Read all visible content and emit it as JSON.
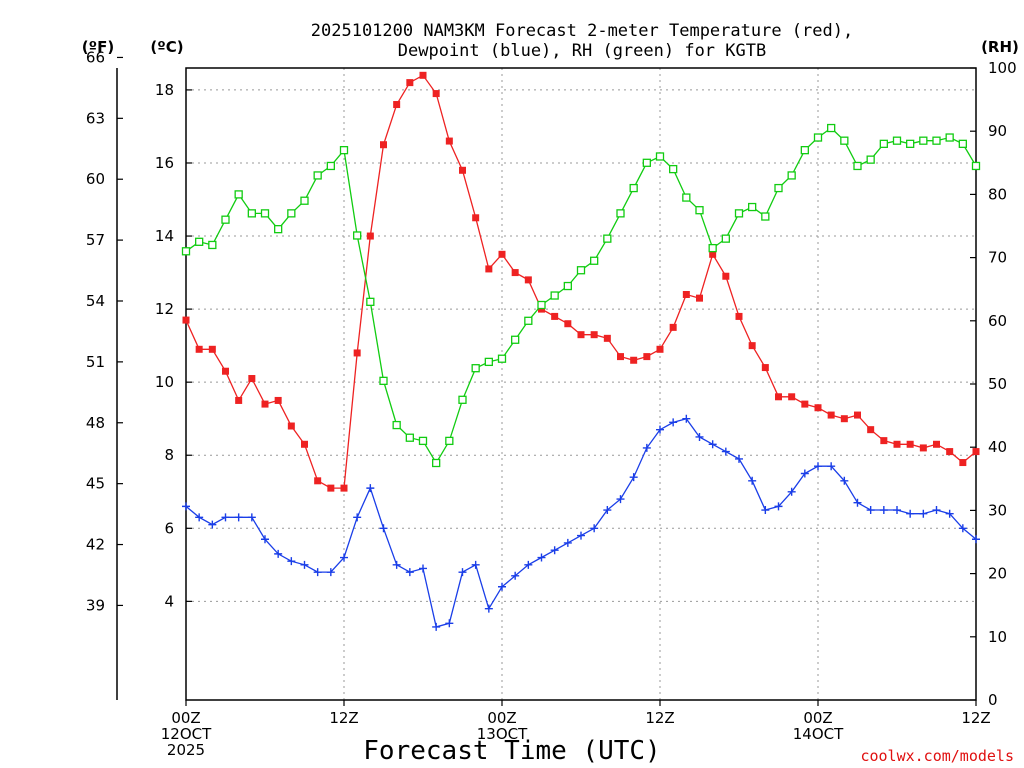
{
  "chart_data": {
    "type": "line",
    "title": "2025101200 NAM3KM Forecast 2-meter Temperature (red),",
    "title_line2": "Dewpoint (blue), RH (green) for KGTB",
    "xlabel": "Forecast Time (UTC)",
    "credit": "coolwx.com/models",
    "units": {
      "fahrenheit": "(ºF)",
      "celsius": "(ºC)",
      "rh": "(RH)"
    },
    "xlim": [
      0,
      60
    ],
    "ylim_c": [
      1.3,
      18.6
    ],
    "ylim_rh": [
      0,
      100
    ],
    "x_ticks": [
      {
        "x": 0,
        "lines": [
          "00Z",
          "12OCT",
          "2025"
        ]
      },
      {
        "x": 12,
        "lines": [
          "12Z"
        ]
      },
      {
        "x": 24,
        "lines": [
          "00Z",
          "13OCT"
        ]
      },
      {
        "x": 36,
        "lines": [
          "12Z"
        ]
      },
      {
        "x": 48,
        "lines": [
          "00Z",
          "14OCT"
        ]
      },
      {
        "x": 60,
        "lines": [
          "12Z"
        ]
      }
    ],
    "y_ticks_c": [
      "4",
      "6",
      "8",
      "10",
      "12",
      "14",
      "16",
      "18"
    ],
    "y_ticks_f": [
      "39",
      "42",
      "45",
      "48",
      "51",
      "54",
      "57",
      "60",
      "63",
      "66"
    ],
    "y_ticks_rh": [
      "0",
      "10",
      "20",
      "30",
      "40",
      "50",
      "60",
      "70",
      "80",
      "90",
      "100"
    ],
    "colors": {
      "temperature": "#ee2222",
      "dewpoint": "#1a3ee8",
      "rh": "#11cc11",
      "grid": "#999999"
    },
    "series": [
      {
        "name": "Temperature",
        "unit": "C",
        "marker": "filled-square",
        "values": [
          11.7,
          10.9,
          10.9,
          10.3,
          9.5,
          10.1,
          9.4,
          9.5,
          8.8,
          8.3,
          7.3,
          7.1,
          7.1,
          10.8,
          14.0,
          16.5,
          17.6,
          18.2,
          18.4,
          17.9,
          16.6,
          15.8,
          14.5,
          13.1,
          13.5,
          13.0,
          12.8,
          12.0,
          11.8,
          11.6,
          11.3,
          11.3,
          11.2,
          10.7,
          10.6,
          10.7,
          10.9,
          11.5,
          12.4,
          12.3,
          13.5,
          12.9,
          11.8,
          11.0,
          10.4,
          9.6,
          9.6,
          9.4,
          9.3,
          9.1,
          9.0,
          9.1,
          8.7,
          8.4,
          8.3,
          8.3,
          8.2,
          8.3,
          8.1,
          7.8,
          8.1
        ]
      },
      {
        "name": "Dewpoint",
        "unit": "C",
        "marker": "plus",
        "values": [
          6.6,
          6.3,
          6.1,
          6.3,
          6.3,
          6.3,
          5.7,
          5.3,
          5.1,
          5.0,
          4.8,
          4.8,
          5.2,
          6.3,
          7.1,
          6.0,
          5.0,
          4.8,
          4.9,
          3.3,
          3.4,
          4.8,
          5.0,
          3.8,
          4.4,
          4.7,
          5.0,
          5.2,
          5.4,
          5.6,
          5.8,
          6.0,
          6.5,
          6.8,
          7.4,
          8.2,
          8.7,
          8.9,
          9.0,
          8.5,
          8.3,
          8.1,
          7.9,
          7.3,
          6.5,
          6.6,
          7.0,
          7.5,
          7.7,
          7.7,
          7.3,
          6.7,
          6.5,
          6.5,
          6.5,
          6.4,
          6.4,
          6.5,
          6.4,
          6.0,
          5.7
        ]
      },
      {
        "name": "RH",
        "unit": "%",
        "marker": "open-square",
        "values": [
          71,
          72.5,
          72,
          76,
          80,
          77,
          77,
          74.5,
          77,
          79,
          83,
          84.5,
          87,
          73.5,
          63,
          50.5,
          43.5,
          41.5,
          41,
          37.5,
          41,
          47.5,
          52.5,
          53.5,
          54,
          57,
          60,
          62.5,
          64,
          65.5,
          68,
          69.5,
          73,
          77,
          81,
          85,
          86,
          84,
          79.5,
          77.5,
          71.5,
          73,
          77,
          78,
          76.5,
          81,
          83,
          87,
          89,
          90.5,
          88.5,
          84.5,
          85.5,
          88,
          88.5,
          88,
          88.5,
          88.5,
          89,
          88,
          84.5
        ]
      }
    ]
  }
}
